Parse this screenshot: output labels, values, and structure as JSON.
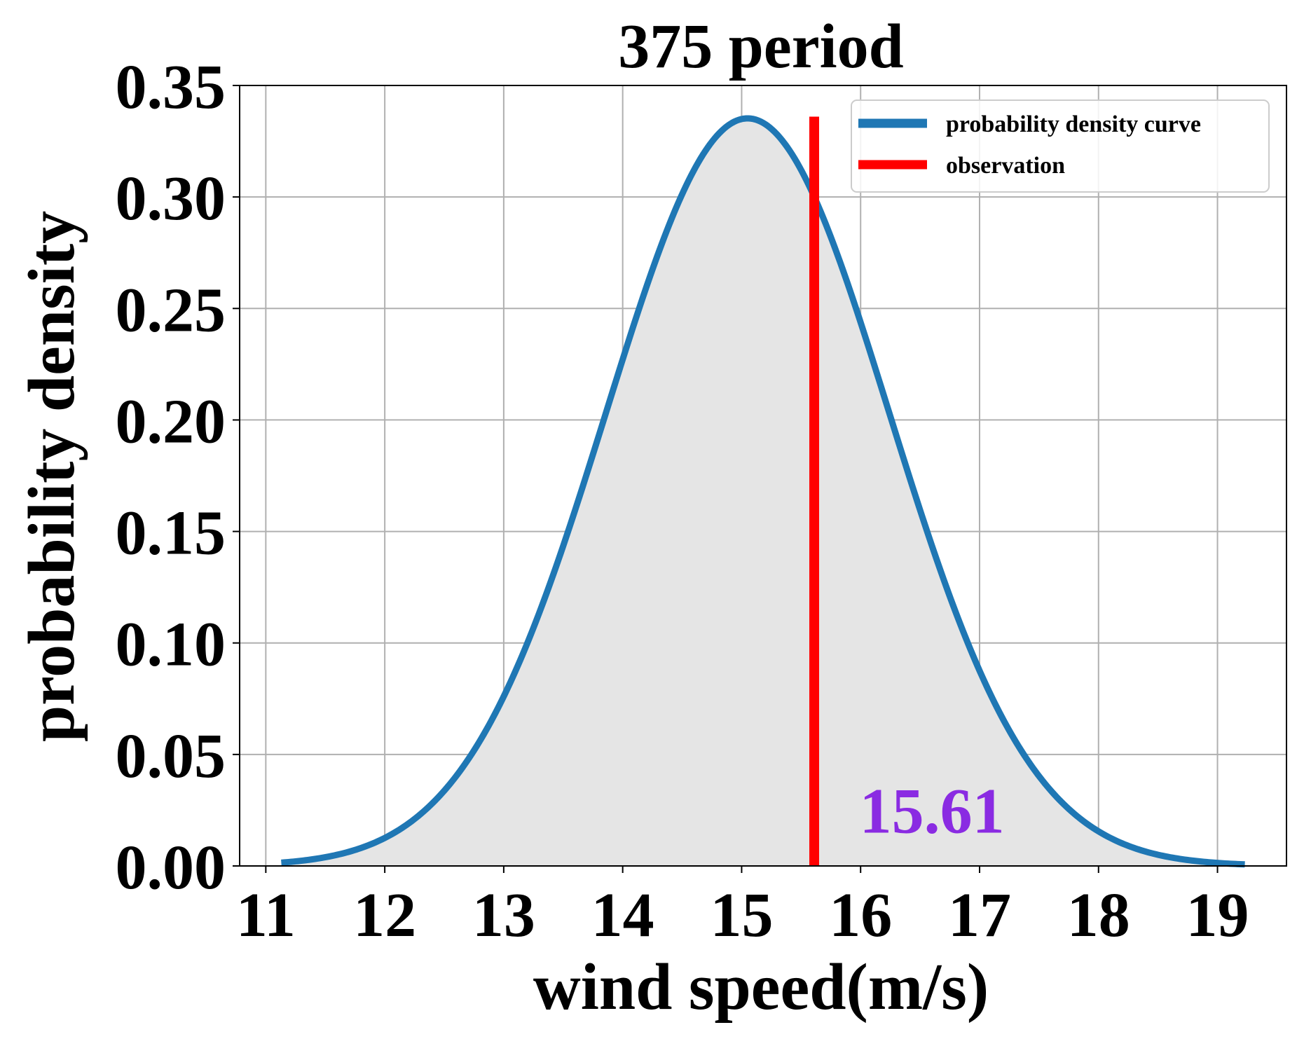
{
  "chart_data": {
    "type": "line",
    "title": "375 period",
    "xlabel": "wind speed(m/s)",
    "ylabel": "probability density",
    "xlim": [
      10.78,
      19.58
    ],
    "ylim": [
      0.0,
      0.35
    ],
    "xticks": [
      "11",
      "12",
      "13",
      "14",
      "15",
      "16",
      "17",
      "18",
      "19"
    ],
    "yticks": [
      "0.00",
      "0.05",
      "0.10",
      "0.15",
      "0.20",
      "0.25",
      "0.30",
      "0.35"
    ],
    "grid": true,
    "legend_position": "top-right",
    "series": [
      {
        "name": "probability density curve",
        "color": "#1f77b4",
        "fill_color": "#e5e5e5",
        "distribution": "normal",
        "mean": 15.05,
        "std": 1.19,
        "x_range": [
          11.13,
          19.23
        ]
      }
    ],
    "observation": {
      "name": "observation",
      "color": "#ff0000",
      "x": 15.61,
      "y_range": [
        0.0,
        0.336
      ]
    },
    "annotation": {
      "text": "15.61",
      "x": 16.6,
      "y": 0.015,
      "color": "#8a2be2"
    }
  }
}
